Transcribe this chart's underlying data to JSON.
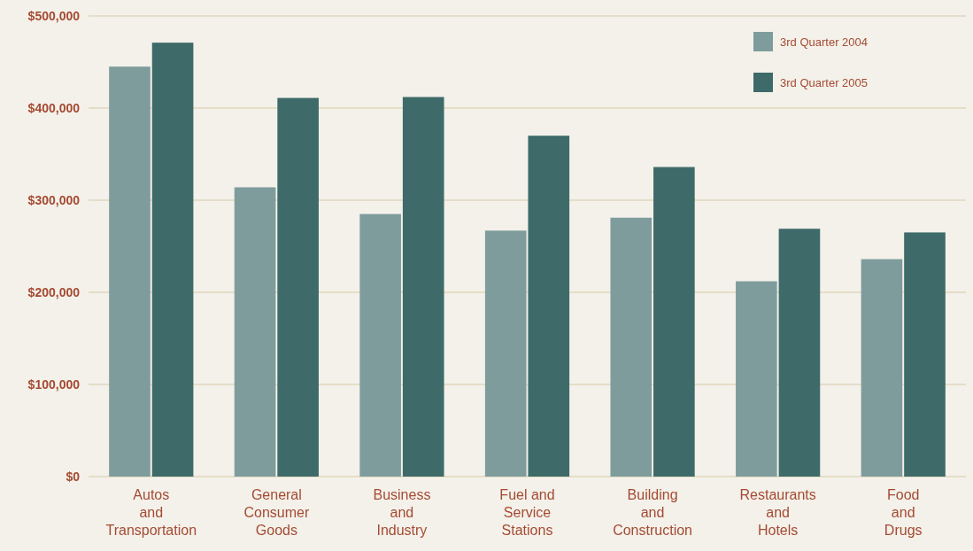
{
  "chart_data": {
    "type": "bar",
    "categories": [
      "Autos\nand\nTransportation",
      "General\nConsumer\nGoods",
      "Business\nand\nIndustry",
      "Fuel and\nService\nStations",
      "Building\nand\nConstruction",
      "Restaurants\nand\nHotels",
      "Food\nand\nDrugs"
    ],
    "series": [
      {
        "name": "3rd Quarter 2004",
        "color": "#7f9c9d",
        "values": [
          445000,
          314000,
          285000,
          267000,
          281000,
          212000,
          236000
        ]
      },
      {
        "name": "3rd Quarter 2005",
        "color": "#3e6b69",
        "values": [
          471000,
          411000,
          412000,
          370000,
          336000,
          269000,
          265000
        ]
      }
    ],
    "ylim": [
      0,
      500000
    ],
    "yticks": [
      {
        "value": 0,
        "label": "$0"
      },
      {
        "value": 100000,
        "label": "$100,000"
      },
      {
        "value": 200000,
        "label": "$200,000"
      },
      {
        "value": 300000,
        "label": "$300,000"
      },
      {
        "value": 400000,
        "label": "$400,000"
      },
      {
        "value": 500000,
        "label": "$500,000"
      }
    ],
    "grid": "y",
    "legend": "top right"
  }
}
